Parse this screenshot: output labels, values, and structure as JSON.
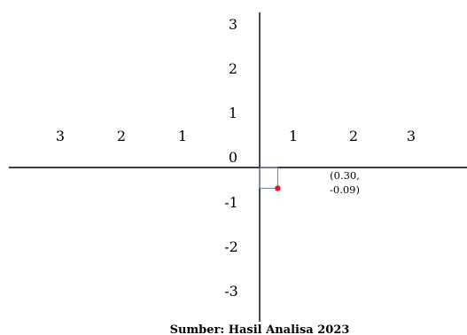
{
  "chart_data": {
    "type": "scatter",
    "x_tick_labels": [
      "3",
      "2",
      "1",
      "1",
      "2",
      "3"
    ],
    "y_tick_labels": [
      "3",
      "2",
      "1",
      "0",
      "-1",
      "-2",
      "-3"
    ],
    "point": {
      "x": 0.3,
      "y": -0.09,
      "label_line1": "(0.30,",
      "label_line2": "-0.09)",
      "color": "#e8161b"
    },
    "guide_box_color": "#6a7ca8",
    "axis_color": "#000000",
    "caption": "Sumber: Hasil Analisa 2023"
  }
}
